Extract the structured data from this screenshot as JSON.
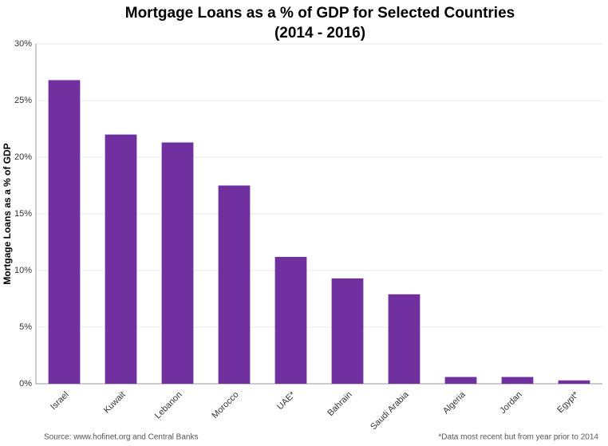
{
  "chart_data": {
    "type": "bar",
    "title": "Mortgage Loans as a % of GDP for Selected Countries",
    "subtitle": "(2014 - 2016)",
    "y_label": "Mortgage Loans as a % of GDP",
    "source": "Source: www.hofinet.org and Central Banks",
    "footnote": "*Data most recent but from year prior to 2014",
    "categories": [
      "Israel",
      "Kuwait",
      "Lebanon",
      "Morocco",
      "UAE*",
      "Bahrain",
      "Saudi Arabia",
      "Algeria",
      "Jordan",
      "Egypt*"
    ],
    "values": [
      26.8,
      22.0,
      21.3,
      17.5,
      11.2,
      9.3,
      7.9,
      0.6,
      0.6,
      0.3
    ],
    "color": "#7030a0",
    "ylim": [
      0,
      30
    ],
    "yticks": [
      {
        "value": 0,
        "label": "0%"
      },
      {
        "value": 5,
        "label": "5%"
      },
      {
        "value": 10,
        "label": "10%"
      },
      {
        "value": 15,
        "label": "15%"
      },
      {
        "value": 20,
        "label": "20%"
      },
      {
        "value": 25,
        "label": "25%"
      },
      {
        "value": 30,
        "label": "30%"
      }
    ],
    "grid": true
  }
}
